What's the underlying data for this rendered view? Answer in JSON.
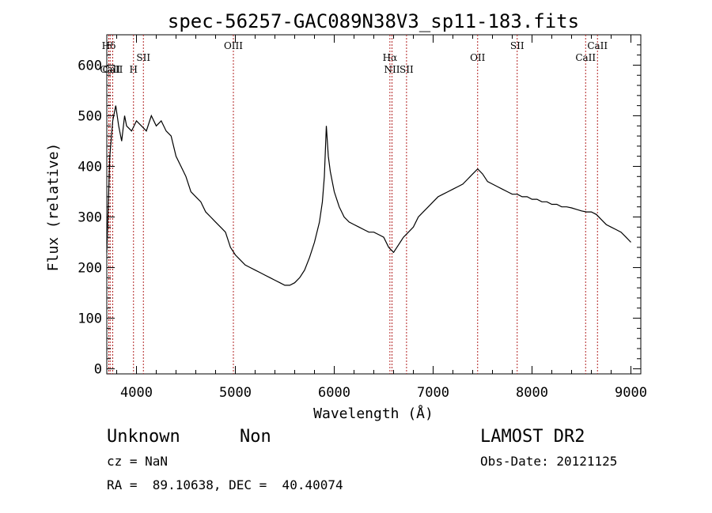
{
  "chart_data": {
    "type": "line",
    "title": "spec-56257-GAC089N38V3_sp11-183.fits",
    "xlabel": "Wavelength (Å)",
    "ylabel": "Flux (relative)",
    "xlim": [
      3700,
      9100
    ],
    "ylim": [
      -10,
      660
    ],
    "x_ticks": [
      4000,
      5000,
      6000,
      7000,
      8000,
      9000
    ],
    "y_ticks": [
      0,
      100,
      200,
      300,
      400,
      500,
      600
    ],
    "grid": false,
    "line_color": "#000000",
    "marker_color": "#b22222",
    "series": [
      {
        "x": [
          3700,
          3730,
          3760,
          3790,
          3820,
          3850,
          3880,
          3900,
          3950,
          4000,
          4050,
          4100,
          4150,
          4200,
          4250,
          4300,
          4350,
          4400,
          4450,
          4500,
          4550,
          4600,
          4650,
          4700,
          4750,
          4800,
          4850,
          4900,
          4950,
          5000,
          5050,
          5100,
          5150,
          5200,
          5250,
          5300,
          5350,
          5400,
          5450,
          5500,
          5550,
          5600,
          5650,
          5700,
          5750,
          5800,
          5850,
          5880,
          5900,
          5920,
          5940,
          5960,
          5980,
          6000,
          6050,
          6100,
          6150,
          6200,
          6250,
          6300,
          6350,
          6400,
          6450,
          6500,
          6550,
          6600,
          6650,
          6700,
          6750,
          6800,
          6850,
          6900,
          6950,
          7000,
          7050,
          7100,
          7150,
          7200,
          7250,
          7300,
          7350,
          7400,
          7450,
          7500,
          7550,
          7600,
          7650,
          7700,
          7750,
          7800,
          7850,
          7900,
          7950,
          8000,
          8050,
          8100,
          8150,
          8200,
          8250,
          8300,
          8350,
          8400,
          8450,
          8500,
          8550,
          8600,
          8650,
          8700,
          8750,
          8800,
          8850,
          8900,
          8950,
          9000
        ],
        "y": [
          230,
          420,
          490,
          520,
          480,
          450,
          500,
          480,
          470,
          490,
          480,
          470,
          500,
          480,
          490,
          470,
          460,
          420,
          400,
          380,
          350,
          340,
          330,
          310,
          300,
          290,
          280,
          270,
          240,
          225,
          215,
          205,
          200,
          195,
          190,
          185,
          180,
          175,
          170,
          165,
          165,
          170,
          180,
          195,
          220,
          250,
          290,
          330,
          380,
          480,
          420,
          390,
          370,
          350,
          320,
          300,
          290,
          285,
          280,
          275,
          270,
          270,
          265,
          260,
          240,
          230,
          245,
          260,
          270,
          280,
          300,
          310,
          320,
          330,
          340,
          345,
          350,
          355,
          360,
          365,
          375,
          385,
          395,
          385,
          370,
          365,
          360,
          355,
          350,
          345,
          345,
          340,
          340,
          335,
          335,
          330,
          330,
          325,
          325,
          320,
          320,
          318,
          315,
          312,
          310,
          310,
          305,
          295,
          285,
          280,
          275,
          270,
          260,
          250
        ]
      }
    ],
    "line_markers": [
      {
        "label": "Hδ",
        "x": 3720,
        "row": 0
      },
      {
        "label": "CaII",
        "x": 3734,
        "row": 2
      },
      {
        "label": "CaII",
        "x": 3760,
        "row": 2
      },
      {
        "label": "H",
        "x": 3970,
        "row": 2
      },
      {
        "label": "SII",
        "x": 4070,
        "row": 1
      },
      {
        "label": "OIII",
        "x": 4980,
        "row": 0
      },
      {
        "label": "Hα",
        "x": 6563,
        "row": 1
      },
      {
        "label": "NII",
        "x": 6584,
        "row": 2
      },
      {
        "label": "SII",
        "x": 6731,
        "row": 2
      },
      {
        "label": "OII",
        "x": 7450,
        "row": 1
      },
      {
        "label": "SII",
        "x": 7850,
        "row": 0
      },
      {
        "label": "CaII",
        "x": 8542,
        "row": 1
      },
      {
        "label": "CaII",
        "x": 8662,
        "row": 0
      }
    ]
  },
  "footer": {
    "object_class": "Unknown",
    "subclass": "Non",
    "survey": "LAMOST DR2",
    "redshift": "cz = NaN",
    "obs_date": "Obs-Date: 20121125",
    "coords": "RA =  89.10638, DEC =  40.40074"
  }
}
